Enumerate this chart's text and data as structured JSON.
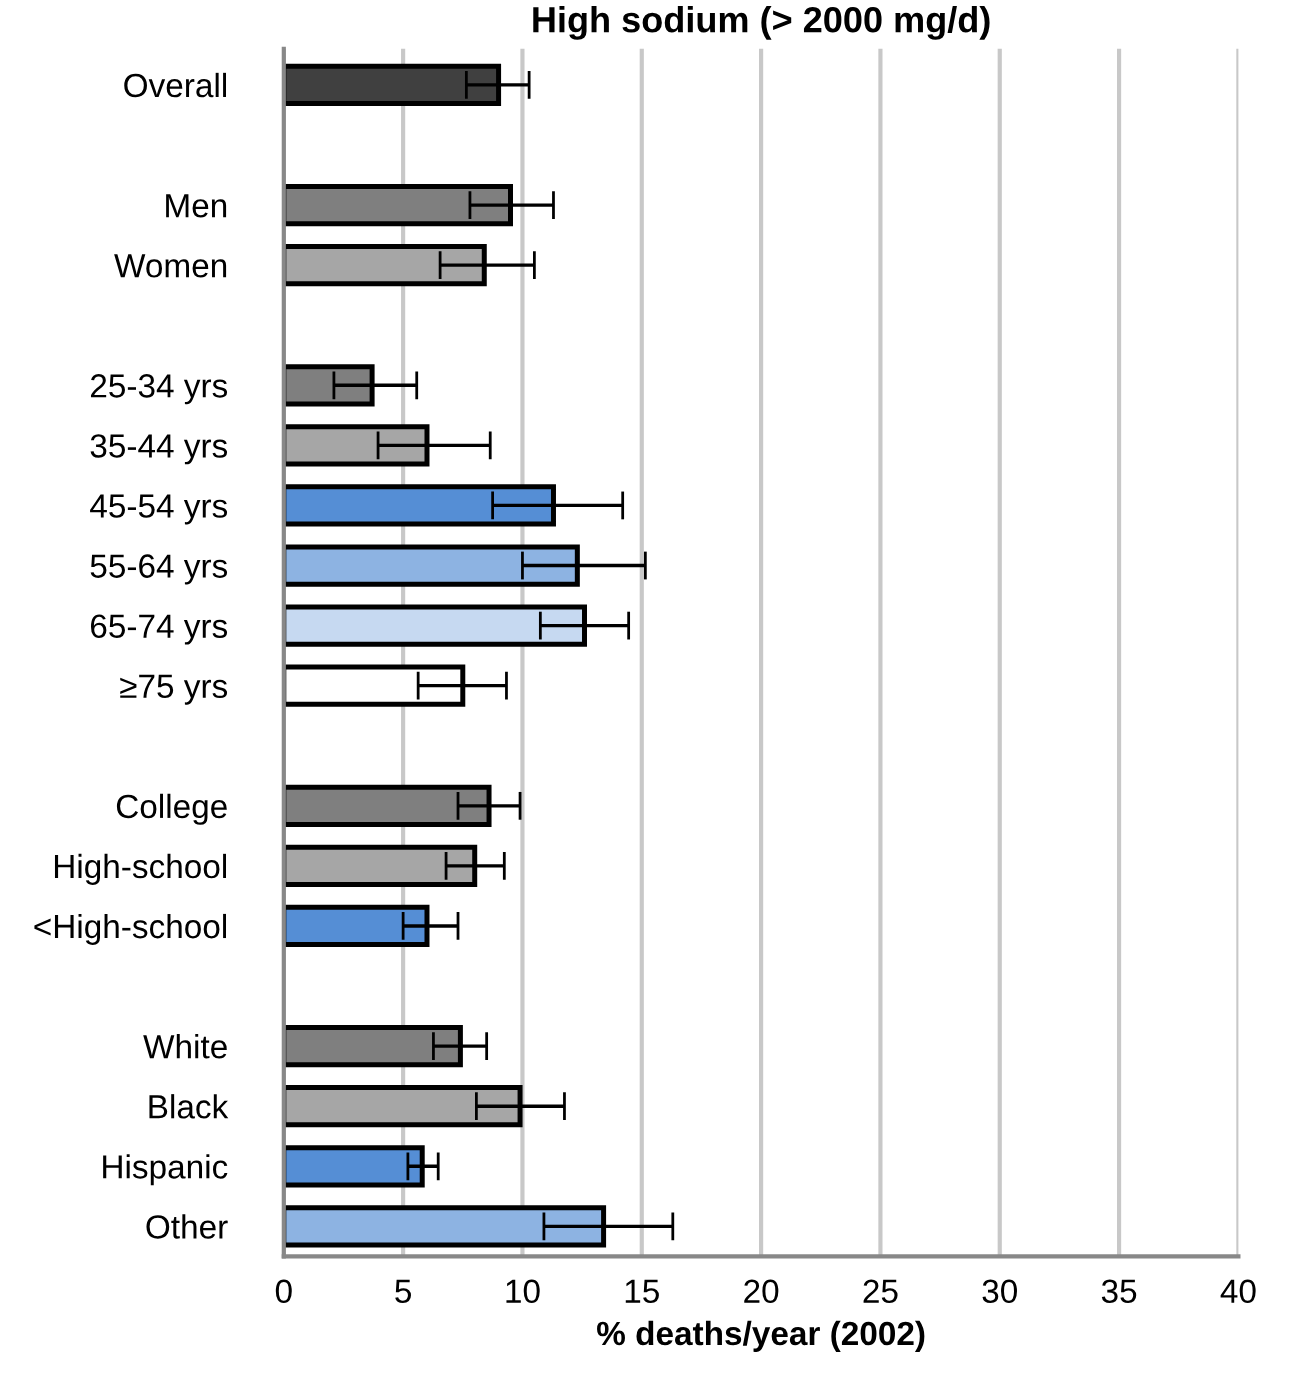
{
  "chart_data": {
    "type": "bar",
    "orientation": "horizontal",
    "title": "High sodium (> 2000 mg/d)",
    "xlabel": "% deaths/year (2002)",
    "categories": [
      "Overall",
      null,
      "Men",
      "Women",
      null,
      "25-34 yrs",
      "35-44 yrs",
      "45-54 yrs",
      "55-64 yrs",
      "65-74 yrs",
      "≥75 yrs",
      null,
      "College",
      "High-school",
      "<High-school",
      null,
      "White",
      "Black",
      "Hispanic",
      "Other"
    ],
    "values": [
      9.0,
      null,
      9.5,
      8.4,
      null,
      3.7,
      6.0,
      11.3,
      12.3,
      12.6,
      7.5,
      null,
      8.6,
      8.0,
      6.0,
      null,
      7.4,
      9.9,
      5.8,
      13.4
    ],
    "errors": [
      [
        7.65,
        10.28
      ],
      null,
      [
        7.8,
        11.3
      ],
      [
        6.55,
        10.5
      ],
      null,
      [
        2.1,
        5.57
      ],
      [
        3.95,
        8.65
      ],
      [
        8.75,
        14.2
      ],
      [
        10.0,
        15.15
      ],
      [
        10.75,
        14.45
      ],
      [
        5.63,
        9.33
      ],
      null,
      [
        7.3,
        9.9
      ],
      [
        6.8,
        9.24
      ],
      [
        5.0,
        7.3
      ],
      null,
      [
        6.27,
        8.5
      ],
      [
        8.07,
        11.76
      ],
      [
        5.2,
        6.47
      ],
      [
        10.9,
        16.3
      ]
    ],
    "colors": [
      "#404040",
      null,
      "#7f7f7f",
      "#a6a6a6",
      null,
      "#7f7f7f",
      "#a6a6a6",
      "#558ed5",
      "#8db3e2",
      "#c6d9f1",
      "#ffffff",
      null,
      "#7f7f7f",
      "#a6a6a6",
      "#558ed5",
      null,
      "#7f7f7f",
      "#a6a6a6",
      "#558ed5",
      "#8db3e2"
    ],
    "xlim": [
      0,
      40
    ],
    "xticks": [
      0,
      5,
      10,
      15,
      20,
      25,
      30,
      35,
      40
    ],
    "grid": "x"
  }
}
